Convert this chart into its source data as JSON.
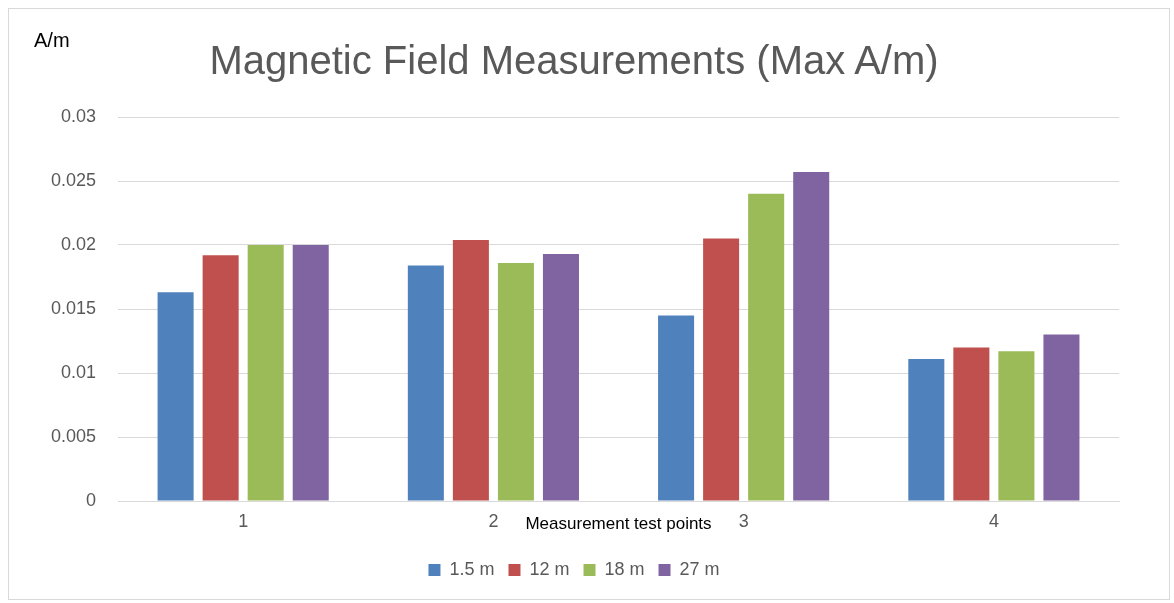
{
  "chart_data": {
    "type": "bar",
    "title": "Magnetic Field Measurements (Max A/m)",
    "xlabel": "Measurement test points",
    "ylabel": "A/m",
    "categories": [
      "1",
      "2",
      "3",
      "4"
    ],
    "series": [
      {
        "name": "1.5 m",
        "color": "#4f81bd",
        "values": [
          0.0163,
          0.0184,
          0.0145,
          0.0111
        ]
      },
      {
        "name": "12 m",
        "color": "#c0504d",
        "values": [
          0.0192,
          0.0204,
          0.0205,
          0.012
        ]
      },
      {
        "name": "18 m",
        "color": "#9bbb59",
        "values": [
          0.02,
          0.0186,
          0.024,
          0.0117
        ]
      },
      {
        "name": "27 m",
        "color": "#8064a2",
        "values": [
          0.02,
          0.0193,
          0.0257,
          0.013
        ]
      }
    ],
    "ylim": [
      0,
      0.03
    ],
    "yticks": [
      0,
      0.005,
      0.01,
      0.015,
      0.02,
      0.025,
      0.03
    ],
    "grid": "y",
    "legend": "bottom"
  }
}
